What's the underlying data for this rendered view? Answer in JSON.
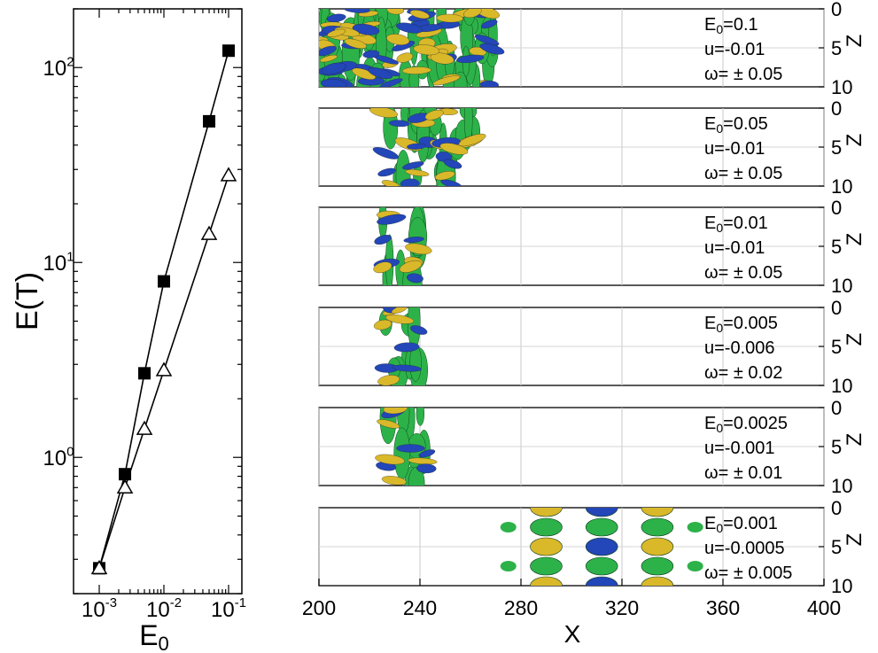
{
  "chart_data": [
    {
      "type": "line",
      "xscale": "log",
      "yscale": "log",
      "xlabel": "E₀",
      "ylabel": "E(T)",
      "xlim": [
        0.001,
        0.1
      ],
      "ylim": [
        0.2,
        200
      ],
      "x_ticks": [
        {
          "base": "10",
          "exp": "-3",
          "value": 0.001
        },
        {
          "base": "10",
          "exp": "-2",
          "value": 0.01
        },
        {
          "base": "10",
          "exp": "-1",
          "value": 0.1
        }
      ],
      "y_ticks": [
        {
          "base": "10",
          "exp": "0",
          "value": 1
        },
        {
          "base": "10",
          "exp": "1",
          "value": 10
        },
        {
          "base": "10",
          "exp": "2",
          "value": 100
        }
      ],
      "series": [
        {
          "marker": "filled-square",
          "x": [
            0.001,
            0.0025,
            0.005,
            0.01,
            0.05,
            0.1
          ],
          "y": [
            0.27,
            0.82,
            2.7,
            8.0,
            53,
            122
          ]
        },
        {
          "marker": "open-triangle",
          "x": [
            0.001,
            0.0025,
            0.005,
            0.01,
            0.05,
            0.1
          ],
          "y": [
            0.27,
            0.7,
            1.4,
            2.8,
            14,
            28
          ]
        }
      ]
    },
    {
      "type": "heatmap",
      "xlabel": "X",
      "zlabel": "Z",
      "xlim": [
        200,
        400
      ],
      "zlim": [
        0,
        10
      ],
      "x_ticks": [
        "200",
        "240",
        "280",
        "320",
        "360",
        "400"
      ],
      "z_ticks": [
        "0",
        "5",
        "10"
      ],
      "colors": {
        "green": "#2db24a",
        "blue": "#2346b8",
        "yellow": "#d9b82a"
      },
      "panels": [
        {
          "E0": "0.1",
          "u": "-0.01",
          "omega": "0.05",
          "x_range": [
            200,
            270
          ]
        },
        {
          "E0": "0.05",
          "u": "-0.01",
          "omega": "0.05",
          "x_range": [
            225,
            262
          ]
        },
        {
          "E0": "0.01",
          "u": "-0.01",
          "omega": "0.05",
          "x_range": [
            225,
            240
          ]
        },
        {
          "E0": "0.005",
          "u": "-0.006",
          "omega": "0.02",
          "x_range": [
            225,
            240
          ]
        },
        {
          "E0": "0.0025",
          "u": "-0.001",
          "omega": "0.01",
          "x_range": [
            226,
            243
          ]
        },
        {
          "E0": "0.001",
          "u": "-0.0005",
          "omega": "0.005",
          "x_range": [
            282,
            345
          ]
        }
      ]
    }
  ]
}
